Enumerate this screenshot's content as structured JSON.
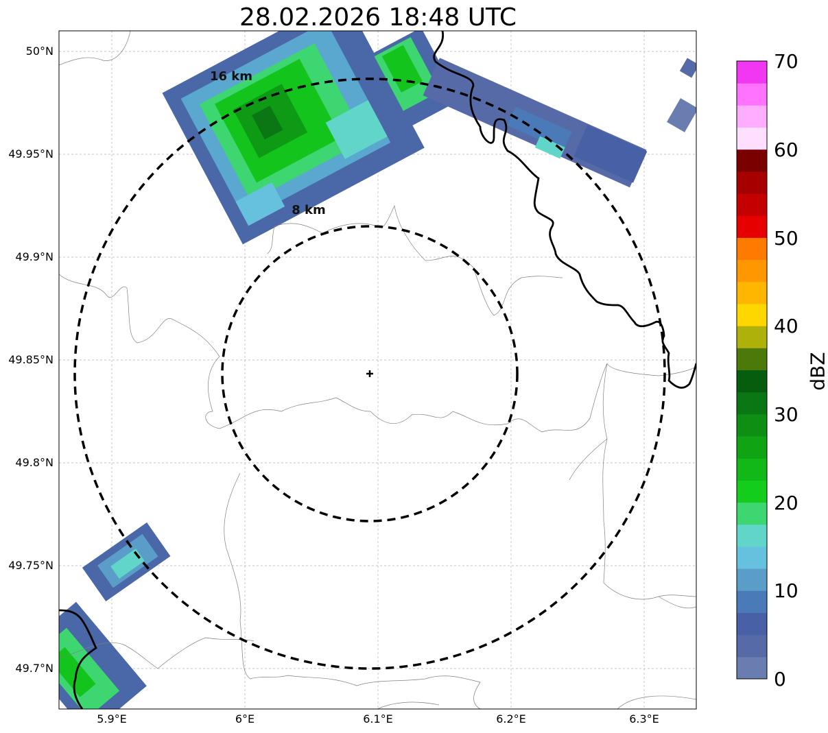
{
  "title": "28.02.2026 18:48 UTC",
  "ring_labels": {
    "inner": "8 km",
    "outer": "16 km"
  },
  "axes": {
    "x_ticks": [
      "5.9°E",
      "6°E",
      "6.1°E",
      "6.2°E",
      "6.3°E"
    ],
    "y_ticks": [
      "50°N",
      "49.95°N",
      "49.9°N",
      "49.85°N",
      "49.8°N",
      "49.75°N",
      "49.7°N"
    ],
    "lon_range": [
      5.86,
      6.34
    ],
    "lat_range": [
      49.68,
      50.01
    ],
    "grid": true
  },
  "radar_site": {
    "lon": 6.095,
    "lat": 49.843
  },
  "colorbar": {
    "label": "dBZ",
    "ticks": [
      "0",
      "10",
      "20",
      "30",
      "40",
      "50",
      "60",
      "70"
    ],
    "colors": [
      "#6a7db0",
      "#566aa8",
      "#4860a5",
      "#4a7ab7",
      "#5a9dc8",
      "#66c1de",
      "#61d6c8",
      "#3ed671",
      "#13cc1c",
      "#12b817",
      "#10a414",
      "#0e8f14",
      "#0a7714",
      "#075d0e",
      "#4b7a0a",
      "#adb109",
      "#ffd700",
      "#ffb600",
      "#ff9700",
      "#ff7b00",
      "#e60000",
      "#c40000",
      "#a60000",
      "#7a0000",
      "#ffdfff",
      "#ffaeff",
      "#ff73ff",
      "#f237f2"
    ]
  }
}
